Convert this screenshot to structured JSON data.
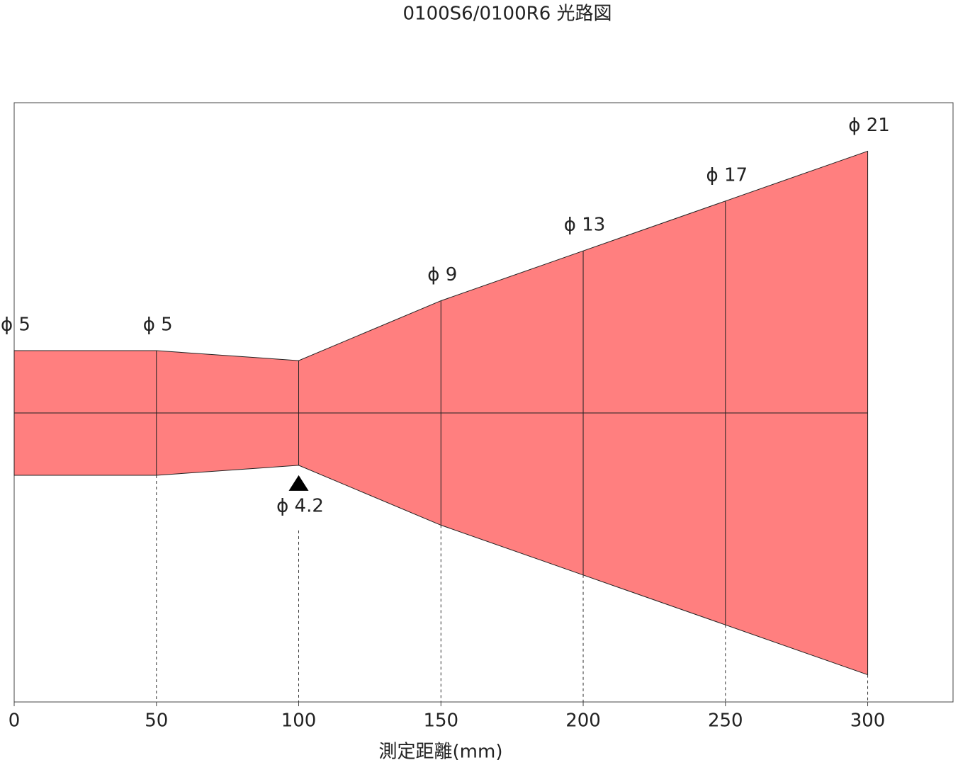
{
  "chart_data": {
    "type": "beam",
    "title": "0100S6/0100R6 光路図",
    "x_label": "測定距離(mm)",
    "x": [
      0,
      50,
      100,
      150,
      200,
      250,
      300
    ],
    "values": [
      5,
      5,
      4.2,
      9,
      13,
      17,
      21
    ],
    "value_labels": [
      "ϕ 5",
      "ϕ 5",
      "ϕ 4.2",
      "ϕ 9",
      "ϕ 13",
      "ϕ 17",
      "ϕ 21"
    ],
    "color": "#ff7f7f",
    "xlim": [
      0,
      330
    ],
    "xticks": [
      0,
      50,
      100,
      150,
      200,
      250,
      300
    ]
  }
}
